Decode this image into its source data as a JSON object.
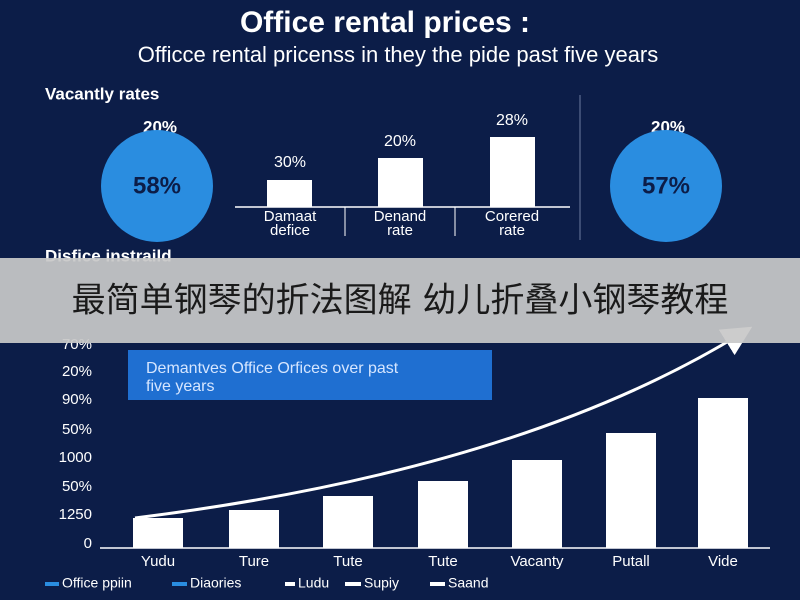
{
  "header": {
    "title": "Office rental prices :",
    "subtitle": "Officce rental pricenss in they the pide past five years"
  },
  "top_section": {
    "heading": "Vacantly rates",
    "left_circle": {
      "above": "20%",
      "label": "58%"
    },
    "right_circle": {
      "above": "20%",
      "label": "57%"
    },
    "bars": [
      {
        "label": "30%",
        "category": [
          "Damaat",
          "defice"
        ]
      },
      {
        "label": "20%",
        "category": [
          "Denand",
          "rate"
        ]
      },
      {
        "label": "28%",
        "category": [
          "Corered",
          "rate"
        ]
      }
    ]
  },
  "banner": "最简单钢琴的折法图解 幼儿折叠小钢琴教程",
  "bottom_section": {
    "heading": "Disfice instraild",
    "axis_labels": [
      "70%",
      "20%",
      "90%",
      "50%",
      "1000",
      "50%",
      "1250",
      "0"
    ],
    "callout": [
      "Demantves Office Orfices over past",
      "five years"
    ],
    "categories": [
      "Yudu",
      "Ture",
      "Tute",
      "Tute",
      "Vacanty",
      "Putall",
      "Vide"
    ],
    "legend": [
      "Office ppiin",
      "Diaories",
      "Ludu",
      "Supiy",
      "Saand"
    ]
  }
}
